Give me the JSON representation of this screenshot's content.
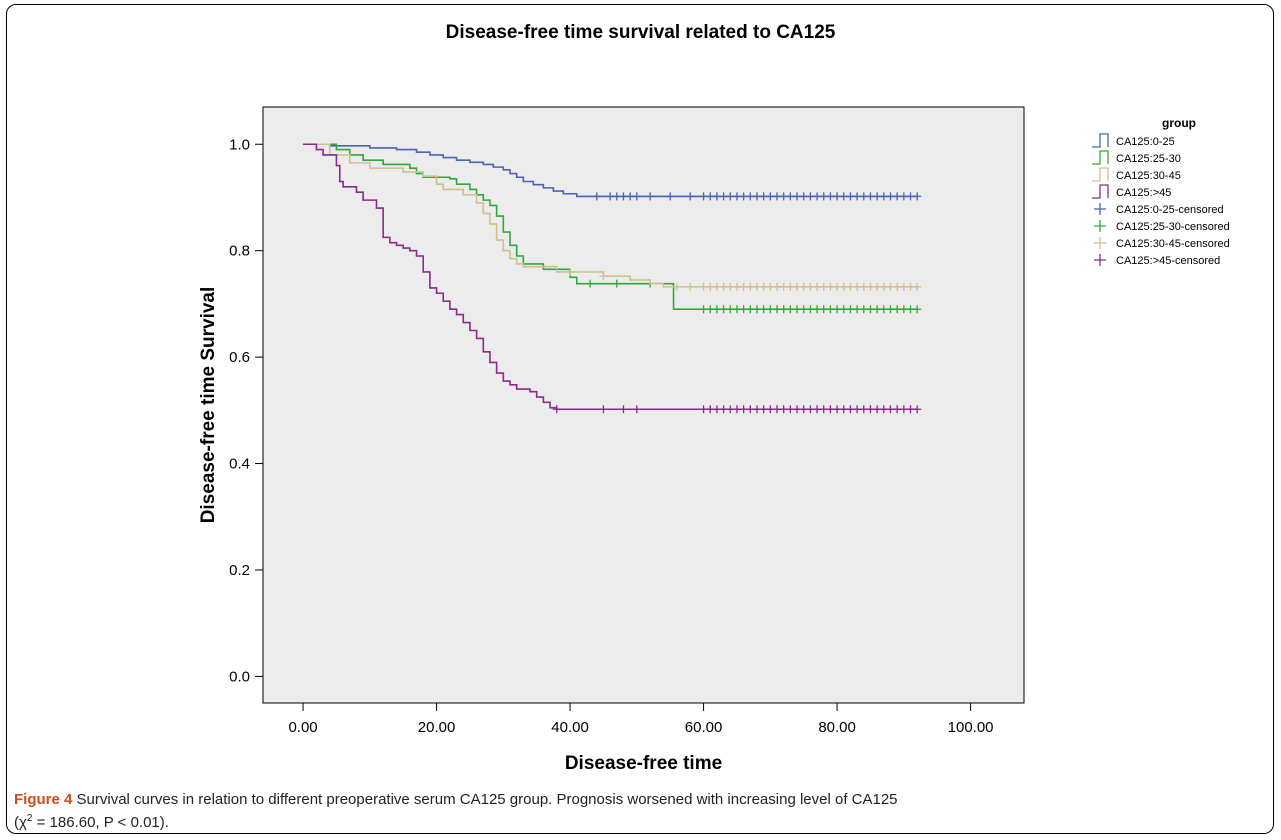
{
  "chart_data": {
    "type": "line",
    "title": "Disease-free time survival related to CA125",
    "xlabel": "Disease-free time",
    "ylabel": "Disease-free time Survival",
    "xlim": [
      -6,
      108
    ],
    "ylim": [
      -0.05,
      1.07
    ],
    "xticks": [
      0,
      20,
      40,
      60,
      80,
      100
    ],
    "xtick_labels": [
      "0.00",
      "20.00",
      "40.00",
      "60.00",
      "80.00",
      "100.00"
    ],
    "yticks": [
      0.0,
      0.2,
      0.4,
      0.6,
      0.8,
      1.0
    ],
    "ytick_labels": [
      "0.0",
      "0.2",
      "0.4",
      "0.6",
      "0.8",
      "1.0"
    ],
    "grid": false,
    "legend": {
      "title": "group",
      "placement": "right"
    },
    "series": [
      {
        "name": "CA125:0-25",
        "color": "#4a64b0",
        "steps": [
          [
            0,
            1.0
          ],
          [
            4,
            0.997
          ],
          [
            10,
            0.993
          ],
          [
            14,
            0.99
          ],
          [
            17,
            0.985
          ],
          [
            19,
            0.98
          ],
          [
            21,
            0.975
          ],
          [
            23,
            0.97
          ],
          [
            25,
            0.966
          ],
          [
            27,
            0.962
          ],
          [
            28.5,
            0.957
          ],
          [
            30,
            0.952
          ],
          [
            31,
            0.945
          ],
          [
            32,
            0.938
          ],
          [
            33,
            0.93
          ],
          [
            34.5,
            0.924
          ],
          [
            36,
            0.918
          ],
          [
            37.5,
            0.912
          ],
          [
            39,
            0.907
          ],
          [
            41,
            0.902
          ],
          [
            92,
            0.902
          ]
        ],
        "censored_name": "CA125:0-25-censored",
        "censored": [
          44,
          46,
          47,
          48,
          49,
          50,
          52,
          55,
          58,
          60,
          61,
          62,
          63,
          64,
          65,
          66,
          67,
          68,
          69,
          70,
          71,
          72,
          73,
          74,
          75,
          76,
          77,
          78,
          79,
          80,
          81,
          82,
          83,
          84,
          85,
          86,
          87,
          88,
          89,
          90,
          91,
          92
        ]
      },
      {
        "name": "CA125:25-30",
        "color": "#2ea83a",
        "steps": [
          [
            0,
            1.0
          ],
          [
            5,
            0.99
          ],
          [
            7,
            0.98
          ],
          [
            9,
            0.97
          ],
          [
            12,
            0.962
          ],
          [
            16,
            0.955
          ],
          [
            17,
            0.945
          ],
          [
            18,
            0.938
          ],
          [
            22,
            0.935
          ],
          [
            23,
            0.925
          ],
          [
            25,
            0.915
          ],
          [
            26,
            0.905
          ],
          [
            27,
            0.895
          ],
          [
            28,
            0.885
          ],
          [
            29,
            0.865
          ],
          [
            30,
            0.835
          ],
          [
            31,
            0.81
          ],
          [
            32,
            0.79
          ],
          [
            33,
            0.775
          ],
          [
            36,
            0.765
          ],
          [
            40,
            0.75
          ],
          [
            41,
            0.738
          ],
          [
            55,
            0.738
          ],
          [
            55.5,
            0.69
          ],
          [
            92,
            0.69
          ]
        ],
        "censored_name": "CA125:25-30-censored",
        "censored": [
          43,
          47,
          52,
          60,
          61,
          62,
          63,
          64,
          65,
          66,
          67,
          68,
          69,
          70,
          71,
          72,
          73,
          74,
          75,
          76,
          77,
          78,
          79,
          80,
          81,
          82,
          83,
          84,
          85,
          86,
          87,
          88,
          89,
          90,
          91,
          92
        ]
      },
      {
        "name": "CA125:30-45",
        "color": "#cfc090",
        "steps": [
          [
            0,
            1.0
          ],
          [
            4,
            0.98
          ],
          [
            7,
            0.965
          ],
          [
            10,
            0.955
          ],
          [
            15,
            0.948
          ],
          [
            18,
            0.94
          ],
          [
            20,
            0.925
          ],
          [
            21,
            0.915
          ],
          [
            24,
            0.905
          ],
          [
            26,
            0.89
          ],
          [
            27,
            0.87
          ],
          [
            28,
            0.85
          ],
          [
            29,
            0.82
          ],
          [
            30,
            0.8
          ],
          [
            31,
            0.785
          ],
          [
            32,
            0.775
          ],
          [
            33,
            0.77
          ],
          [
            38,
            0.76
          ],
          [
            45,
            0.752
          ],
          [
            49,
            0.745
          ],
          [
            52,
            0.738
          ],
          [
            54,
            0.732
          ],
          [
            92,
            0.732
          ]
        ],
        "censored_name": "CA125:30-45-censored",
        "censored": [
          40,
          45,
          56,
          58,
          60,
          61,
          62,
          63,
          64,
          65,
          66,
          67,
          68,
          69,
          70,
          71,
          72,
          73,
          74,
          75,
          76,
          77,
          78,
          79,
          80,
          81,
          82,
          83,
          84,
          85,
          86,
          87,
          88,
          89,
          90,
          91,
          92
        ]
      },
      {
        "name": "CA125:>45",
        "color": "#8a2a8a",
        "steps": [
          [
            0,
            1.0
          ],
          [
            2,
            0.99
          ],
          [
            3,
            0.98
          ],
          [
            5,
            0.96
          ],
          [
            5.5,
            0.93
          ],
          [
            6,
            0.92
          ],
          [
            8,
            0.91
          ],
          [
            9,
            0.895
          ],
          [
            11,
            0.88
          ],
          [
            12,
            0.825
          ],
          [
            13,
            0.815
          ],
          [
            14,
            0.81
          ],
          [
            15,
            0.805
          ],
          [
            16,
            0.8
          ],
          [
            17,
            0.79
          ],
          [
            18,
            0.76
          ],
          [
            19,
            0.73
          ],
          [
            20,
            0.72
          ],
          [
            21,
            0.705
          ],
          [
            22,
            0.69
          ],
          [
            23,
            0.68
          ],
          [
            24,
            0.665
          ],
          [
            25,
            0.65
          ],
          [
            26,
            0.635
          ],
          [
            27,
            0.61
          ],
          [
            28,
            0.59
          ],
          [
            29,
            0.57
          ],
          [
            30,
            0.555
          ],
          [
            31,
            0.548
          ],
          [
            32,
            0.54
          ],
          [
            34,
            0.535
          ],
          [
            35,
            0.525
          ],
          [
            36,
            0.515
          ],
          [
            37,
            0.505
          ],
          [
            38,
            0.502
          ],
          [
            92,
            0.502
          ]
        ],
        "censored_name": "CA125:>45-censored",
        "censored": [
          38,
          45,
          48,
          50,
          60,
          61,
          62,
          63,
          64,
          65,
          66,
          67,
          68,
          69,
          70,
          71,
          72,
          73,
          74,
          75,
          76,
          77,
          78,
          79,
          80,
          81,
          82,
          83,
          84,
          85,
          86,
          87,
          88,
          89,
          90,
          91,
          92
        ]
      }
    ]
  },
  "caption": {
    "label": "Figure 4",
    "line1": " Survival curves in relation to different preoperative serum CA125 group. Prognosis worsened with increasing level of CA125",
    "line2_pre": "(χ",
    "line2_sup": "2",
    "line2_post": " = 186.60, P < 0.01)."
  }
}
